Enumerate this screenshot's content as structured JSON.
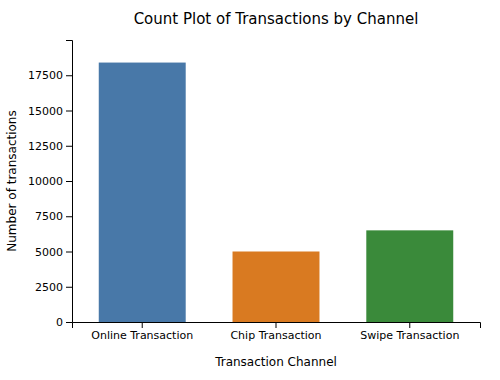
{
  "chart_data": {
    "type": "bar",
    "title": "Count Plot of Transactions by Channel",
    "xlabel": "Transaction Channel",
    "ylabel": "Number of transactions",
    "categories": [
      "Online Transaction",
      "Chip Transaction",
      "Swipe Transaction"
    ],
    "values": [
      18400,
      5000,
      6500
    ],
    "colors": [
      "#4878a8",
      "#d97a21",
      "#3a8a3a"
    ],
    "ylim": [
      0,
      20000
    ],
    "yticks": [
      0,
      2500,
      5000,
      7500,
      10000,
      12500,
      15000,
      17500
    ],
    "grid": false
  }
}
